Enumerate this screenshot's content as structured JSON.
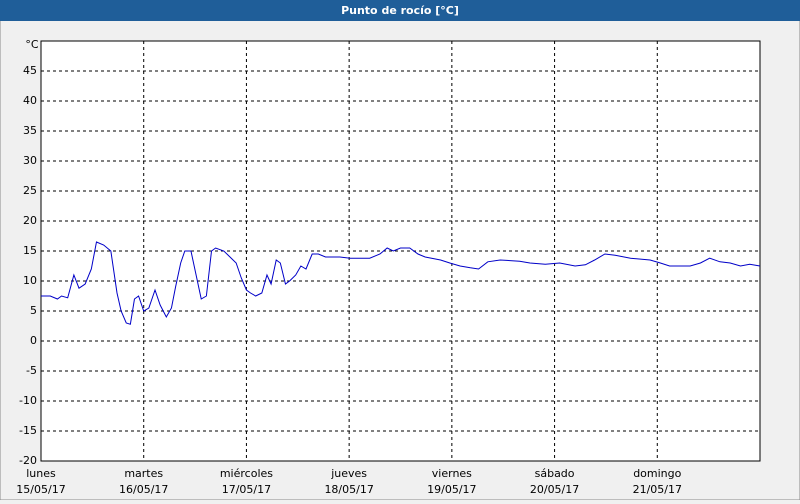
{
  "chart_data": {
    "type": "line",
    "title": "Punto de rocío [°C]",
    "y_unit": "°C",
    "ylim": [
      -20,
      50
    ],
    "yticks": [
      -20,
      -15,
      -10,
      -5,
      0,
      5,
      10,
      15,
      20,
      25,
      30,
      35,
      40,
      45
    ],
    "grid": true,
    "xlim": [
      0,
      7
    ],
    "xticks": [
      {
        "value": 0,
        "label": "lunes",
        "date": "15/05/17"
      },
      {
        "value": 1,
        "label": "martes",
        "date": "16/05/17"
      },
      {
        "value": 2,
        "label": "miércoles",
        "date": "17/05/17"
      },
      {
        "value": 3,
        "label": "jueves",
        "date": "18/05/17"
      },
      {
        "value": 4,
        "label": "viernes",
        "date": "19/05/17"
      },
      {
        "value": 5,
        "label": "sábado",
        "date": "20/05/17"
      },
      {
        "value": 6,
        "label": "domingo",
        "date": "21/05/17"
      }
    ],
    "series": [
      {
        "color": "#0000c8",
        "x": [
          0,
          0.09,
          0.16,
          0.2,
          0.26,
          0.32,
          0.37,
          0.43,
          0.49,
          0.54,
          0.61,
          0.68,
          0.74,
          0.78,
          0.83,
          0.87,
          0.91,
          0.95,
          1.0,
          1.05,
          1.11,
          1.16,
          1.22,
          1.27,
          1.31,
          1.36,
          1.4,
          1.46,
          1.51,
          1.56,
          1.61,
          1.66,
          1.7,
          1.78,
          1.84,
          1.9,
          1.95,
          2.0,
          2.04,
          2.09,
          2.15,
          2.2,
          2.24,
          2.29,
          2.33,
          2.38,
          2.42,
          2.48,
          2.53,
          2.58,
          2.64,
          2.7,
          2.77,
          2.91,
          3.01,
          3.2,
          3.3,
          3.37,
          3.43,
          3.5,
          3.59,
          3.67,
          3.74,
          3.89,
          3.98,
          4.08,
          4.18,
          4.26,
          4.35,
          4.47,
          4.66,
          4.76,
          4.91,
          5.05,
          5.2,
          5.3,
          5.39,
          5.49,
          5.59,
          5.74,
          5.93,
          6.03,
          6.12,
          6.32,
          6.42,
          6.51,
          6.61,
          6.71,
          6.81,
          6.9,
          7.0
        ],
        "values": [
          7.5,
          7.5,
          7,
          7.5,
          7.2,
          11,
          8.8,
          9.5,
          12,
          16.5,
          16,
          15,
          8,
          5,
          3,
          2.8,
          7,
          7.5,
          5,
          5.5,
          8.5,
          6,
          4,
          5.5,
          9,
          13,
          15,
          15,
          11,
          7,
          7.5,
          15,
          15.5,
          15,
          14,
          13,
          10.5,
          8.5,
          8,
          7.5,
          8,
          11,
          9.5,
          13.5,
          13,
          9.5,
          10,
          11,
          12.5,
          12,
          14.5,
          14.5,
          14,
          14,
          13.8,
          13.8,
          14.5,
          15.5,
          15,
          15.5,
          15.5,
          14.5,
          14,
          13.5,
          13,
          12.5,
          12.2,
          12,
          13.2,
          13.5,
          13.3,
          13,
          12.8,
          13,
          12.5,
          12.7,
          13.5,
          14.5,
          14.3,
          13.8,
          13.5,
          13,
          12.5,
          12.5,
          13,
          13.8,
          13.2,
          13,
          12.5,
          12.8,
          12.5
        ]
      }
    ]
  }
}
